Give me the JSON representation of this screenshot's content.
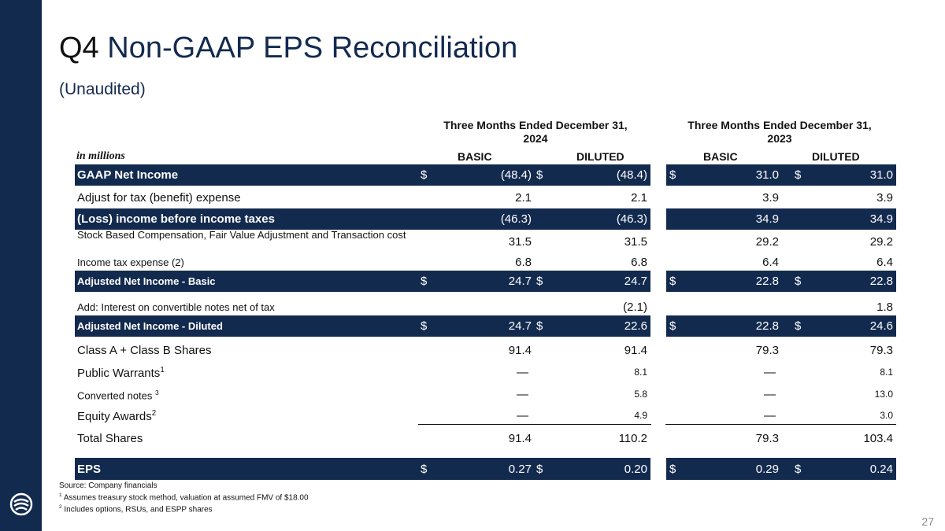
{
  "title_prefix": "Q4",
  "title_main": "Non-GAAP EPS Reconciliation",
  "subtitle": "(Unaudited)",
  "period_2024": "Three Months Ended December 31, 2024",
  "period_2024_l1": "Three Months Ended December 31,",
  "period_2024_l2": "2024",
  "period_2023_l1": "Three Months Ended December 31,",
  "period_2023_l2": "2023",
  "in_millions": "in millions",
  "col_basic": "BASIC",
  "col_diluted": "DILUTED",
  "rows": [
    {
      "label": "GAAP Net Income",
      "b24": "(48.4)",
      "d24": "(48.4)",
      "b23": "31.0",
      "d23": "31.0",
      "dollar": "$"
    },
    {
      "label": "Adjust for tax (benefit) expense",
      "b24": "2.1",
      "d24": "2.1",
      "b23": "3.9",
      "d23": "3.9"
    },
    {
      "label": "(Loss) income before income taxes",
      "b24": "(46.3)",
      "d24": "(46.3)",
      "b23": "34.9",
      "d23": "34.9"
    },
    {
      "label": "Stock Based Compensation, Fair Value Adjustment and Transaction",
      "label2": "cost",
      "b24": "31.5",
      "d24": "31.5",
      "b23": "29.2",
      "d23": "29.2"
    },
    {
      "label": "Income tax expense (2)",
      "b24": "6.8",
      "d24": "6.8",
      "b23": "6.4",
      "d23": "6.4"
    },
    {
      "label": "Adjusted Net Income - Basic",
      "b24": "24.7",
      "d24": "24.7",
      "b23": "22.8",
      "d23": "22.8",
      "dollar": "$"
    },
    {
      "label": "Add: Interest on convertible notes net of tax",
      "b24": "",
      "d24": "(2.1)",
      "b23": "",
      "d23": "1.8"
    },
    {
      "label": "Adjusted Net Income - Diluted",
      "b24": "24.7",
      "d24": "22.6",
      "b23": "22.8",
      "d23": "24.6",
      "dollar": "$"
    },
    {
      "label": "Class A + Class B Shares",
      "b24": "91.4",
      "d24": "91.4",
      "b23": "79.3",
      "d23": "79.3"
    },
    {
      "label": "Public Warrants",
      "sup": "1",
      "b24": "—",
      "d24": "8.1",
      "b23": "—",
      "d23": "8.1"
    },
    {
      "label": "Converted notes ",
      "sup": "3",
      "b24": "—",
      "d24": "5.8",
      "b23": "—",
      "d23": "13.0"
    },
    {
      "label": "Equity Awards",
      "sup": "2",
      "b24": "—",
      "d24": "4.9",
      "b23": "—",
      "d23": "3.0"
    },
    {
      "label": "Total Shares",
      "b24": "91.4",
      "d24": "110.2",
      "b23": "79.3",
      "d23": "103.4"
    },
    {
      "label": "EPS",
      "b24": "0.27",
      "d24": "0.20",
      "b23": "0.29",
      "d23": "0.24",
      "dollar": "$"
    }
  ],
  "footnotes": {
    "source": "Source: Company financials",
    "n1_mark": "1",
    "n1": " Assumes treasury stock method, valuation at assumed FMV of $18.00",
    "n2_mark": "2",
    "n2": " Includes options, RSUs, and ESPP shares"
  },
  "page_number": "27",
  "colors": {
    "navy": "#132a4f"
  }
}
